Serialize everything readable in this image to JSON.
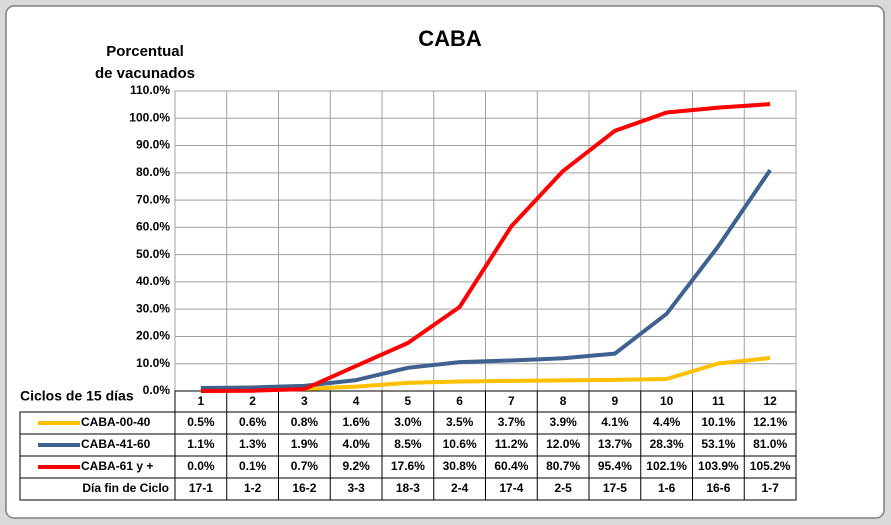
{
  "chart_data": {
    "type": "line",
    "title": "CABA",
    "ylabel": [
      "Porcentual",
      "de vacunados"
    ],
    "xlabel": "Ciclos de 15 días",
    "categories": [
      "1",
      "2",
      "3",
      "4",
      "5",
      "6",
      "7",
      "8",
      "9",
      "10",
      "11",
      "12"
    ],
    "series": [
      {
        "name": "CABA-00-40",
        "color": "#ffc000",
        "values": [
          0.5,
          0.6,
          0.8,
          1.6,
          3.0,
          3.5,
          3.7,
          3.9,
          4.1,
          4.4,
          10.1,
          12.1
        ],
        "value_labels": [
          "0.5%",
          "0.6%",
          "0.8%",
          "1.6%",
          "3.0%",
          "3.5%",
          "3.7%",
          "3.9%",
          "4.1%",
          "4.4%",
          "10.1%",
          "12.1%"
        ]
      },
      {
        "name": "CABA-41-60",
        "color": "#3f6190",
        "values": [
          1.1,
          1.3,
          1.9,
          4.0,
          8.5,
          10.6,
          11.2,
          12.0,
          13.7,
          28.3,
          53.1,
          81.0
        ],
        "value_labels": [
          "1.1%",
          "1.3%",
          "1.9%",
          "4.0%",
          "8.5%",
          "10.6%",
          "11.2%",
          "12.0%",
          "13.7%",
          "28.3%",
          "53.1%",
          "81.0%"
        ]
      },
      {
        "name": "CABA-61 y +",
        "color": "#ff0000",
        "values": [
          0.0,
          0.1,
          0.7,
          9.2,
          17.6,
          30.8,
          60.4,
          80.7,
          95.4,
          102.1,
          103.9,
          105.2
        ],
        "value_labels": [
          "0.0%",
          "0.1%",
          "0.7%",
          "9.2%",
          "17.6%",
          "30.8%",
          "60.4%",
          "80.7%",
          "95.4%",
          "102.1%",
          "103.9%",
          "105.2%"
        ]
      }
    ],
    "end_dates": {
      "name": "Día fin de Ciclo",
      "values": [
        "17-1",
        "1-2",
        "16-2",
        "3-3",
        "18-3",
        "2-4",
        "17-4",
        "2-5",
        "17-5",
        "1-6",
        "16-6",
        "1-7"
      ]
    },
    "ylim": [
      0,
      110
    ],
    "yticks": [
      {
        "value": 0,
        "label": "0.0%"
      },
      {
        "value": 10,
        "label": "10.0%"
      },
      {
        "value": 20,
        "label": "20.0%"
      },
      {
        "value": 30,
        "label": "30.0%"
      },
      {
        "value": 40,
        "label": "40.0%"
      },
      {
        "value": 50,
        "label": "50.0%"
      },
      {
        "value": 60,
        "label": "60.0%"
      },
      {
        "value": 70,
        "label": "70.0%"
      },
      {
        "value": 80,
        "label": "80.0%"
      },
      {
        "value": 90,
        "label": "90.0%"
      },
      {
        "value": 100,
        "label": "100.0%"
      },
      {
        "value": 110,
        "label": "110.0%"
      }
    ],
    "grid": true
  }
}
